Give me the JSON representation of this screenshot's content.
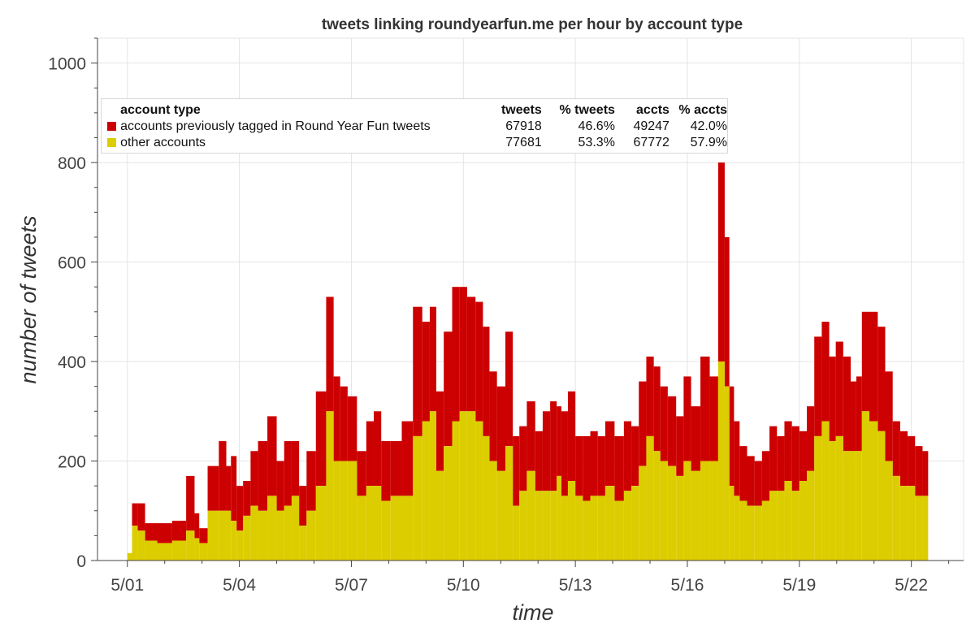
{
  "chart_data": {
    "type": "bar",
    "stacked": true,
    "title": "tweets linking roundyearfun.me per hour by account type",
    "xlabel": "time",
    "ylabel": "number of tweets",
    "ylim": [
      0,
      1050
    ],
    "y_ticks": [
      0,
      200,
      400,
      600,
      800,
      1000
    ],
    "x_ticks": [
      "5/01",
      "5/04",
      "5/07",
      "5/10",
      "5/13",
      "5/16",
      "5/19",
      "5/22"
    ],
    "x_tick_days": [
      1,
      4,
      7,
      10,
      13,
      16,
      19,
      22
    ],
    "xlim_days": [
      0.2,
      23.4
    ],
    "grid": true,
    "bar_interval": "1 hour",
    "series_anchor_days": [
      1.05,
      1.2,
      1.35,
      1.6,
      2.0,
      2.4,
      2.75,
      2.85,
      3.0,
      3.3,
      3.6,
      3.7,
      3.85,
      4.0,
      4.2,
      4.4,
      4.6,
      4.9,
      5.1,
      5.3,
      5.5,
      5.7,
      5.9,
      6.2,
      6.45,
      6.6,
      6.8,
      7.0,
      7.3,
      7.5,
      7.7,
      7.9,
      8.2,
      8.5,
      8.8,
      9.0,
      9.2,
      9.35,
      9.6,
      9.8,
      10.0,
      10.2,
      10.45,
      10.6,
      10.8,
      11.0,
      11.25,
      11.4,
      11.6,
      11.8,
      12.05,
      12.2,
      12.45,
      12.55,
      12.7,
      12.9,
      13.1,
      13.3,
      13.5,
      13.7,
      13.9,
      14.2,
      14.4,
      14.6,
      14.8,
      15.0,
      15.2,
      15.35,
      15.6,
      15.8,
      16.0,
      16.2,
      16.5,
      16.7,
      16.95,
      17.05,
      17.2,
      17.3,
      17.5,
      17.7,
      17.9,
      18.1,
      18.3,
      18.5,
      18.7,
      18.9,
      19.1,
      19.3,
      19.5,
      19.7,
      19.9,
      20.05,
      20.3,
      20.45,
      20.6,
      20.75,
      21.0,
      21.2,
      21.4,
      21.6,
      21.8,
      22.0,
      22.2,
      22.4
    ],
    "series": [
      {
        "name": "accounts previously tagged in Round Year Fun tweets",
        "color": "#cc0000",
        "values": [
          0,
          45,
          55,
          35,
          40,
          40,
          110,
          50,
          30,
          90,
          140,
          90,
          130,
          90,
          70,
          110,
          140,
          160,
          100,
          130,
          110,
          80,
          120,
          190,
          230,
          170,
          150,
          130,
          90,
          130,
          150,
          120,
          110,
          150,
          260,
          200,
          210,
          160,
          230,
          270,
          250,
          230,
          240,
          220,
          180,
          170,
          230,
          140,
          130,
          140,
          120,
          160,
          180,
          140,
          170,
          180,
          120,
          130,
          130,
          120,
          130,
          130,
          140,
          120,
          170,
          160,
          170,
          150,
          140,
          120,
          170,
          130,
          210,
          170,
          400,
          300,
          200,
          150,
          110,
          100,
          90,
          100,
          130,
          110,
          120,
          130,
          100,
          130,
          200,
          200,
          170,
          190,
          190,
          140,
          150,
          200,
          220,
          210,
          180,
          110,
          110,
          100,
          100,
          90
        ]
      },
      {
        "name": "other accounts",
        "color": "#dccd00",
        "values": [
          15,
          70,
          60,
          40,
          35,
          40,
          60,
          45,
          35,
          100,
          100,
          100,
          80,
          60,
          90,
          110,
          100,
          130,
          100,
          110,
          130,
          70,
          100,
          150,
          300,
          200,
          200,
          200,
          130,
          150,
          150,
          120,
          130,
          130,
          250,
          280,
          300,
          180,
          230,
          280,
          300,
          300,
          280,
          250,
          200,
          180,
          230,
          110,
          140,
          180,
          140,
          140,
          140,
          170,
          130,
          160,
          130,
          120,
          130,
          130,
          150,
          120,
          140,
          150,
          190,
          250,
          220,
          200,
          190,
          170,
          200,
          180,
          200,
          200,
          400,
          350,
          150,
          130,
          120,
          110,
          110,
          120,
          140,
          140,
          160,
          140,
          160,
          180,
          250,
          280,
          240,
          250,
          220,
          220,
          220,
          300,
          280,
          260,
          200,
          170,
          150,
          150,
          130,
          130
        ]
      }
    ],
    "legend": {
      "position": "top-left",
      "headers": [
        "account type",
        "tweets",
        "% tweets",
        "accts",
        "% accts"
      ],
      "rows": [
        {
          "label": "accounts previously tagged in Round Year Fun tweets",
          "color": "#cc0000",
          "tweets": "67918",
          "pct_tweets": "46.6%",
          "accts": "49247",
          "pct_accts": "42.0%"
        },
        {
          "label": "other accounts",
          "color": "#dccd00",
          "tweets": "77681",
          "pct_tweets": "53.3%",
          "accts": "67772",
          "pct_accts": "57.9%"
        }
      ]
    }
  }
}
